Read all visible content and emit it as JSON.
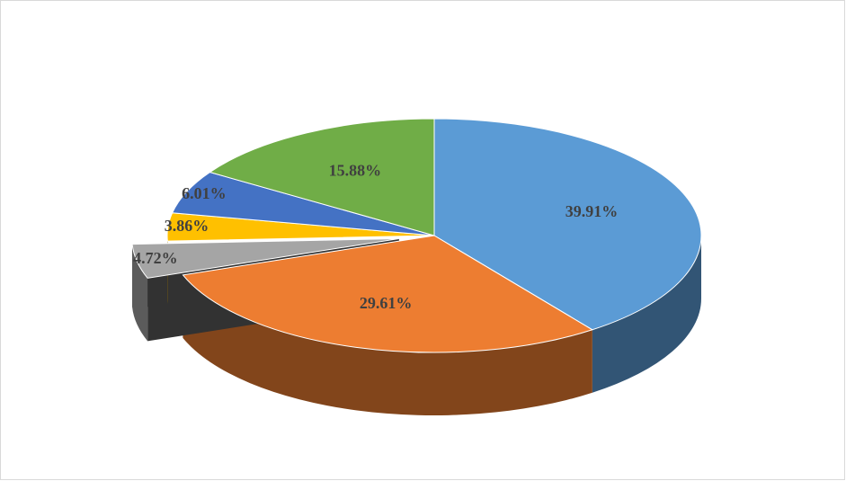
{
  "chart_data": {
    "type": "pie3d",
    "values": [
      39.91,
      29.61,
      4.72,
      3.86,
      6.01,
      15.88
    ],
    "value_labels": [
      "39.91%",
      "29.61%",
      "4.72%",
      "3.86%",
      "6.01%",
      "15.88%"
    ],
    "colors": [
      "#5b9bd5",
      "#ed7d31",
      "#a5a5a5",
      "#ffc000",
      "#4472c4",
      "#70ad47"
    ],
    "exploded": [
      false,
      false,
      true,
      false,
      false,
      false
    ]
  }
}
